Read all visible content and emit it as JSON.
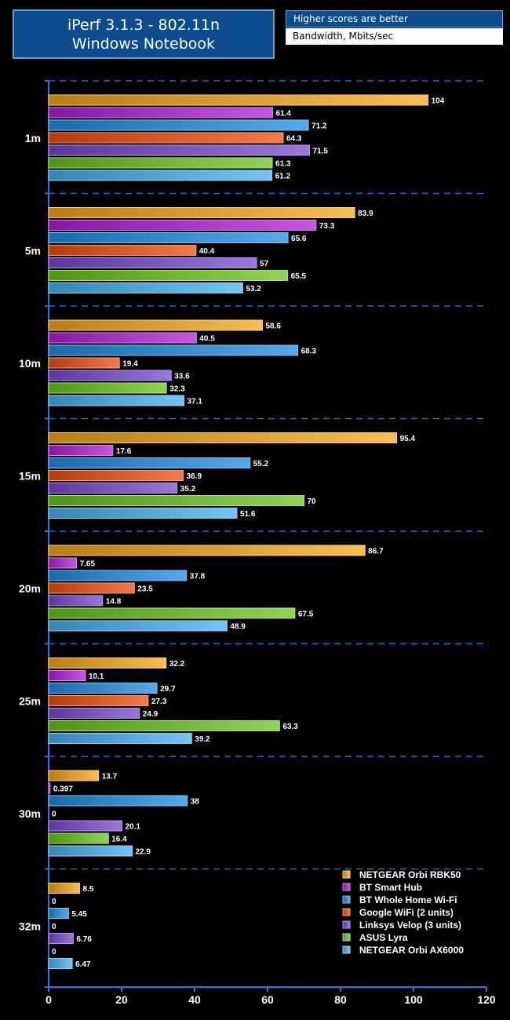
{
  "header": {
    "title_line1": "iPerf 3.1.3 - 802.11n",
    "title_line2": "Windows Notebook",
    "note_higher": "Higher scores are better",
    "note_units": "Bandwidth, Mbits/sec"
  },
  "chart_data": {
    "type": "bar",
    "orientation": "horizontal",
    "title": "iPerf 3.1.3 - 802.11n Windows Notebook",
    "xlabel": "Bandwidth, Mbits/sec",
    "ylabel": "",
    "xlim": [
      0,
      120
    ],
    "x_ticks": [
      0,
      20,
      40,
      60,
      80,
      100,
      120
    ],
    "grid": "dashed horizontal separators between groups",
    "legend_position": "bottom-right",
    "categories": [
      "1m",
      "5m",
      "10m",
      "15m",
      "20m",
      "25m",
      "30m",
      "32m"
    ],
    "series": [
      {
        "name": "NETGEAR Orbi RBK50",
        "color": "#f5a81a",
        "values": [
          104,
          83.9,
          58.6,
          95.4,
          86.7,
          32.2,
          13.7,
          8.5
        ],
        "labels": [
          "104",
          "83.9",
          "58.6",
          "95.4",
          "86.7",
          "32.2",
          "13.7",
          "8.5"
        ]
      },
      {
        "name": "BT Smart Hub",
        "color": "#b41ed8",
        "values": [
          61.4,
          73.3,
          40.5,
          17.6,
          7.65,
          10.1,
          0.397,
          0
        ],
        "labels": [
          "61.4",
          "73.3",
          "40.5",
          "17.6",
          "7.65",
          "10.1",
          "0.397",
          "0"
        ]
      },
      {
        "name": "BT Whole Home Wi-Fi",
        "color": "#1e8ee6",
        "values": [
          71.2,
          65.6,
          68.3,
          55.2,
          37.8,
          29.7,
          38,
          5.45
        ],
        "labels": [
          "71.2",
          "65.6",
          "68.3",
          "55.2",
          "37.8",
          "29.7",
          "38",
          "5.45"
        ]
      },
      {
        "name": "Google WiFi (2 units)",
        "color": "#f04e0e",
        "values": [
          64.3,
          40.4,
          19.4,
          36.9,
          23.5,
          27.3,
          0,
          0
        ],
        "labels": [
          "64.3",
          "40.4",
          "19.4",
          "36.9",
          "23.5",
          "27.3",
          "0",
          "0"
        ]
      },
      {
        "name": "Linksys Velop (3 units)",
        "color": "#7a48d0",
        "values": [
          71.5,
          57,
          33.6,
          35.2,
          14.8,
          24.9,
          20.1,
          6.76
        ],
        "labels": [
          "71.5",
          "57",
          "33.6",
          "35.2",
          "14.8",
          "24.9",
          "20.1",
          "6.76"
        ]
      },
      {
        "name": "ASUS Lyra",
        "color": "#6cc41e",
        "values": [
          61.3,
          65.5,
          32.3,
          70,
          67.5,
          63.3,
          16.4,
          0
        ],
        "labels": [
          "61.3",
          "65.5",
          "32.3",
          "70",
          "67.5",
          "63.3",
          "16.4",
          "0"
        ]
      },
      {
        "name": "NETGEAR Orbi AX6000",
        "color": "#46b2f0",
        "values": [
          61.2,
          53.2,
          37.1,
          51.6,
          48.9,
          39.2,
          22.9,
          6.47
        ],
        "labels": [
          "61.2",
          "53.2",
          "37.1",
          "51.6",
          "48.9",
          "39.2",
          "22.9",
          "6.47"
        ]
      }
    ]
  }
}
